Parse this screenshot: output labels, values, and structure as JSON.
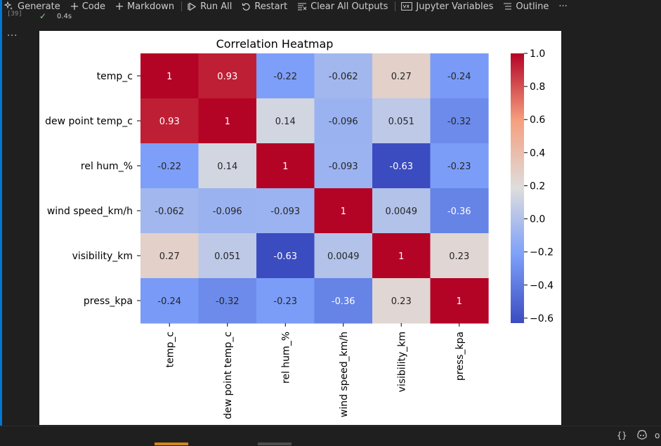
{
  "toolbar": {
    "items": [
      {
        "label": "Generate",
        "icon": "sparkle-icon"
      },
      {
        "label": "Code",
        "icon": "plus-icon"
      },
      {
        "label": "Markdown",
        "icon": "plus-icon"
      },
      {
        "label": "Run All",
        "icon": "run-all-icon"
      },
      {
        "label": "Restart",
        "icon": "restart-icon"
      },
      {
        "label": "Clear All Outputs",
        "icon": "clear-outputs-icon"
      },
      {
        "label": "Jupyter Variables",
        "icon": "variables-icon"
      },
      {
        "label": "Outline",
        "icon": "outline-icon"
      }
    ],
    "more": "···"
  },
  "cell": {
    "execution_count": "[39]",
    "status_icon": "✓",
    "duration": "0.4s",
    "more_actions": "···"
  },
  "statusbar": {
    "braces": "{}",
    "copilot_icon": "copilot-icon",
    "more": "o"
  },
  "colors": {
    "accent": "#0078d4",
    "success": "#89d185",
    "tab_active": "#d18616"
  },
  "chart_data": {
    "type": "heatmap",
    "title": "Correlation Heatmap",
    "labels": [
      "temp_c",
      "dew point temp_c",
      "rel hum_%",
      "wind speed_km/h",
      "visibility_km",
      "press_kpa"
    ],
    "values": [
      [
        1,
        0.93,
        -0.22,
        -0.062,
        0.27,
        -0.24
      ],
      [
        0.93,
        1,
        0.14,
        -0.096,
        0.051,
        -0.32
      ],
      [
        -0.22,
        0.14,
        1,
        -0.093,
        -0.63,
        -0.23
      ],
      [
        -0.062,
        -0.096,
        -0.093,
        1,
        0.0049,
        -0.36
      ],
      [
        0.27,
        0.051,
        -0.63,
        0.0049,
        1,
        0.23
      ],
      [
        -0.24,
        -0.32,
        -0.23,
        -0.36,
        0.23,
        1
      ]
    ],
    "cell_labels": [
      [
        "1",
        "0.93",
        "-0.22",
        "-0.062",
        "0.27",
        "-0.24"
      ],
      [
        "0.93",
        "1",
        "0.14",
        "-0.096",
        "0.051",
        "-0.32"
      ],
      [
        "-0.22",
        "0.14",
        "1",
        "-0.093",
        "-0.63",
        "-0.23"
      ],
      [
        "-0.062",
        "-0.096",
        "-0.093",
        "1",
        "0.0049",
        "-0.36"
      ],
      [
        "0.27",
        "0.051",
        "-0.63",
        "0.0049",
        "1",
        "0.23"
      ],
      [
        "-0.24",
        "-0.32",
        "-0.23",
        "-0.36",
        "0.23",
        "1"
      ]
    ],
    "colormap": "coolwarm",
    "vmin": -0.63,
    "vmax": 1.0,
    "colorbar_ticks": [
      1.0,
      0.8,
      0.6,
      0.4,
      0.2,
      0.0,
      -0.2,
      -0.4,
      -0.6
    ],
    "colorbar_tick_labels": [
      "1.0",
      "0.8",
      "0.6",
      "0.4",
      "0.2",
      "0.0",
      "−0.2",
      "−0.4",
      "−0.6"
    ]
  }
}
